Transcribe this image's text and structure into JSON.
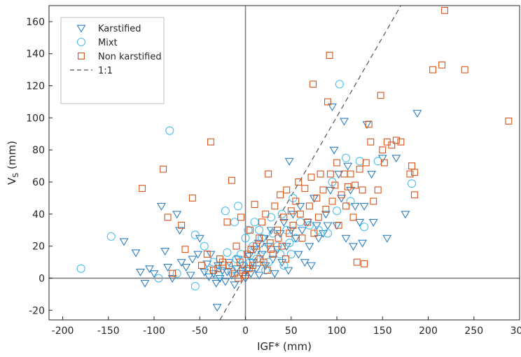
{
  "chart_data": {
    "type": "scatter",
    "title": "",
    "xlabel": "IGF* (mm)",
    "ylabel_main": "V",
    "ylabel_sub": "S",
    "ylabel_unit": " (mm)",
    "xlim": [
      -215,
      300
    ],
    "ylim": [
      -26,
      170
    ],
    "xticks": [
      -200,
      -150,
      -100,
      -50,
      0,
      50,
      100,
      150,
      200,
      250,
      300
    ],
    "yticks": [
      -20,
      0,
      20,
      40,
      60,
      80,
      100,
      120,
      140,
      160
    ],
    "zero_lines": true,
    "legend": {
      "placement": "top-left",
      "entries": [
        {
          "label": "Karstified",
          "marker": "triangle-down",
          "color": "#2E7FC0"
        },
        {
          "label": "Mixt",
          "marker": "circle",
          "color": "#4DBEEE"
        },
        {
          "label": "Non karstified",
          "marker": "square",
          "color": "#D95319"
        },
        {
          "label": "1:1",
          "marker": "dashed-line",
          "color": "#555555"
        }
      ]
    },
    "reference_line": {
      "label": "1:1",
      "x": [
        -28,
        170
      ],
      "y": [
        -26,
        170
      ]
    },
    "series": [
      {
        "name": "Karstified",
        "marker": "triangle-down",
        "color": "#2E7FC0",
        "points": [
          [
            -133,
            23
          ],
          [
            -120,
            16
          ],
          [
            -115,
            4
          ],
          [
            -110,
            -3
          ],
          [
            -105,
            6
          ],
          [
            -100,
            3
          ],
          [
            -92,
            45
          ],
          [
            -88,
            17
          ],
          [
            -85,
            7
          ],
          [
            -80,
            0
          ],
          [
            -75,
            40
          ],
          [
            -72,
            30
          ],
          [
            -70,
            10
          ],
          [
            -65,
            7
          ],
          [
            -60,
            2
          ],
          [
            -58,
            12
          ],
          [
            -52,
            15
          ],
          [
            -50,
            25
          ],
          [
            -45,
            4
          ],
          [
            -42,
            9
          ],
          [
            -40,
            1
          ],
          [
            -38,
            15
          ],
          [
            -35,
            3
          ],
          [
            -32,
            -3
          ],
          [
            -30,
            8
          ],
          [
            -28,
            0
          ],
          [
            -25,
            5
          ],
          [
            -22,
            -2
          ],
          [
            -20,
            4
          ],
          [
            -18,
            10
          ],
          [
            -15,
            2
          ],
          [
            -12,
            -4
          ],
          [
            -10,
            6
          ],
          [
            -8,
            12
          ],
          [
            -5,
            3
          ],
          [
            -3,
            8
          ],
          [
            0,
            0
          ],
          [
            2,
            5
          ],
          [
            4,
            14
          ],
          [
            6,
            3
          ],
          [
            8,
            10
          ],
          [
            10,
            18
          ],
          [
            12,
            6
          ],
          [
            14,
            22
          ],
          [
            15,
            2
          ],
          [
            18,
            15
          ],
          [
            20,
            25
          ],
          [
            22,
            8
          ],
          [
            25,
            20
          ],
          [
            28,
            30
          ],
          [
            30,
            12
          ],
          [
            32,
            3
          ],
          [
            35,
            18
          ],
          [
            38,
            28
          ],
          [
            40,
            10
          ],
          [
            42,
            35
          ],
          [
            45,
            20
          ],
          [
            47,
            5
          ],
          [
            50,
            30
          ],
          [
            52,
            40
          ],
          [
            55,
            25
          ],
          [
            58,
            15
          ],
          [
            60,
            45
          ],
          [
            62,
            30
          ],
          [
            65,
            10
          ],
          [
            68,
            35
          ],
          [
            70,
            20
          ],
          [
            72,
            8
          ],
          [
            75,
            50
          ],
          [
            78,
            33
          ],
          [
            80,
            25
          ],
          [
            85,
            28
          ],
          [
            88,
            40
          ],
          [
            90,
            33
          ],
          [
            93,
            55
          ],
          [
            95,
            107
          ],
          [
            97,
            80
          ],
          [
            100,
            33
          ],
          [
            102,
            65
          ],
          [
            105,
            50
          ],
          [
            108,
            98
          ],
          [
            110,
            25
          ],
          [
            112,
            70
          ],
          [
            115,
            55
          ],
          [
            118,
            20
          ],
          [
            120,
            45
          ],
          [
            125,
            35
          ],
          [
            128,
            22
          ],
          [
            130,
            45
          ],
          [
            133,
            96
          ],
          [
            138,
            65
          ],
          [
            140,
            35
          ],
          [
            150,
            75
          ],
          [
            155,
            25
          ],
          [
            165,
            75
          ],
          [
            175,
            40
          ],
          [
            188,
            103
          ],
          [
            -31,
            -18
          ],
          [
            48,
            73
          ]
        ]
      },
      {
        "name": "Mixt",
        "marker": "circle",
        "color": "#4DBEEE",
        "points": [
          [
            -180,
            6
          ],
          [
            -147,
            26
          ],
          [
            -83,
            92
          ],
          [
            -95,
            0
          ],
          [
            -75,
            3
          ],
          [
            -55,
            27
          ],
          [
            -55,
            -5
          ],
          [
            -45,
            20
          ],
          [
            -40,
            5
          ],
          [
            -35,
            10
          ],
          [
            -30,
            2
          ],
          [
            -25,
            8
          ],
          [
            -22,
            42
          ],
          [
            -20,
            16
          ],
          [
            -15,
            5
          ],
          [
            -12,
            35
          ],
          [
            -8,
            45
          ],
          [
            -5,
            15
          ],
          [
            0,
            25
          ],
          [
            5,
            10
          ],
          [
            8,
            20
          ],
          [
            10,
            35
          ],
          [
            15,
            30
          ],
          [
            20,
            18
          ],
          [
            25,
            10
          ],
          [
            30,
            28
          ],
          [
            35,
            20
          ],
          [
            40,
            40
          ],
          [
            45,
            30
          ],
          [
            50,
            15
          ],
          [
            55,
            25
          ],
          [
            60,
            35
          ],
          [
            70,
            33
          ],
          [
            80,
            30
          ],
          [
            90,
            28
          ],
          [
            95,
            60
          ],
          [
            100,
            42
          ],
          [
            103,
            121
          ],
          [
            110,
            75
          ],
          [
            115,
            48
          ],
          [
            125,
            73
          ],
          [
            130,
            32
          ],
          [
            145,
            73
          ],
          [
            182,
            59
          ],
          [
            -10,
            12
          ],
          [
            -2,
            8
          ],
          [
            3,
            30
          ],
          [
            12,
            12
          ],
          [
            18,
            25
          ],
          [
            22,
            5
          ],
          [
            28,
            38
          ],
          [
            38,
            15
          ],
          [
            42,
            8
          ],
          [
            48,
            22
          ],
          [
            52,
            50
          ]
        ]
      },
      {
        "name": "Non karstified",
        "marker": "square",
        "color": "#D95319",
        "points": [
          [
            -113,
            56
          ],
          [
            -90,
            68
          ],
          [
            -85,
            38
          ],
          [
            -80,
            3
          ],
          [
            -70,
            33
          ],
          [
            -66,
            18
          ],
          [
            -58,
            50
          ],
          [
            -38,
            85
          ],
          [
            -30,
            6
          ],
          [
            -25,
            10
          ],
          [
            -20,
            35
          ],
          [
            -15,
            61
          ],
          [
            -12,
            3
          ],
          [
            -10,
            20
          ],
          [
            -8,
            0
          ],
          [
            -5,
            38
          ],
          [
            -3,
            5
          ],
          [
            0,
            2
          ],
          [
            2,
            15
          ],
          [
            5,
            30
          ],
          [
            8,
            8
          ],
          [
            10,
            46
          ],
          [
            12,
            20
          ],
          [
            15,
            25
          ],
          [
            18,
            35
          ],
          [
            20,
            10
          ],
          [
            22,
            40
          ],
          [
            25,
            65
          ],
          [
            27,
            22
          ],
          [
            30,
            15
          ],
          [
            32,
            45
          ],
          [
            35,
            30
          ],
          [
            38,
            52
          ],
          [
            40,
            20
          ],
          [
            42,
            38
          ],
          [
            45,
            55
          ],
          [
            48,
            28
          ],
          [
            50,
            42
          ],
          [
            52,
            33
          ],
          [
            55,
            48
          ],
          [
            58,
            60
          ],
          [
            60,
            40
          ],
          [
            62,
            25
          ],
          [
            65,
            56
          ],
          [
            68,
            35
          ],
          [
            70,
            45
          ],
          [
            72,
            63
          ],
          [
            74,
            121
          ],
          [
            75,
            28
          ],
          [
            78,
            50
          ],
          [
            80,
            38
          ],
          [
            82,
            65
          ],
          [
            85,
            55
          ],
          [
            88,
            43
          ],
          [
            90,
            110
          ],
          [
            92,
            139
          ],
          [
            93,
            65
          ],
          [
            95,
            48
          ],
          [
            98,
            58
          ],
          [
            100,
            72
          ],
          [
            102,
            33
          ],
          [
            105,
            52
          ],
          [
            108,
            65
          ],
          [
            110,
            45
          ],
          [
            112,
            57
          ],
          [
            115,
            65
          ],
          [
            118,
            38
          ],
          [
            120,
            58
          ],
          [
            122,
            10
          ],
          [
            125,
            68
          ],
          [
            128,
            55
          ],
          [
            130,
            9
          ],
          [
            132,
            72
          ],
          [
            135,
            96
          ],
          [
            137,
            85
          ],
          [
            140,
            48
          ],
          [
            145,
            55
          ],
          [
            148,
            114
          ],
          [
            150,
            80
          ],
          [
            152,
            72
          ],
          [
            155,
            85
          ],
          [
            160,
            83
          ],
          [
            165,
            86
          ],
          [
            170,
            85
          ],
          [
            180,
            65
          ],
          [
            182,
            70
          ],
          [
            185,
            52
          ],
          [
            185,
            66
          ],
          [
            205,
            130
          ],
          [
            215,
            133
          ],
          [
            218,
            167
          ],
          [
            240,
            130
          ],
          [
            288,
            98
          ],
          [
            -48,
            8
          ],
          [
            -42,
            15
          ],
          [
            -35,
            5
          ],
          [
            -28,
            12
          ],
          [
            -18,
            8
          ],
          [
            -6,
            10
          ],
          [
            4,
            6
          ],
          [
            6,
            18
          ],
          [
            16,
            12
          ],
          [
            24,
            5
          ],
          [
            28,
            18
          ],
          [
            36,
            25
          ],
          [
            44,
            12
          ]
        ]
      }
    ]
  }
}
